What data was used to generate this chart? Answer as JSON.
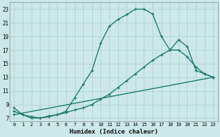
{
  "xlabel": "Humidex (Indice chaleur)",
  "bg_color": "#cce8e8",
  "grid_color": "#b5d5d5",
  "line_color": "#1a7a6e",
  "xlim": [
    -0.5,
    23.5
  ],
  "ylim": [
    6.5,
    24
  ],
  "xticks": [
    0,
    1,
    2,
    3,
    4,
    5,
    6,
    7,
    8,
    9,
    10,
    11,
    12,
    13,
    14,
    15,
    16,
    17,
    18,
    19,
    20,
    21,
    22,
    23
  ],
  "yticks": [
    7,
    9,
    11,
    13,
    15,
    17,
    19,
    21,
    23
  ],
  "curve1_x": [
    0,
    1,
    2,
    3,
    4,
    5,
    6,
    7,
    8,
    9,
    10,
    11,
    12,
    13,
    14,
    15,
    16,
    17,
    18,
    19,
    20,
    21,
    22,
    23
  ],
  "curve1_y": [
    8.5,
    7.5,
    7.0,
    7.0,
    7.3,
    7.5,
    8.0,
    10.0,
    12.0,
    14.0,
    18.0,
    20.5,
    21.5,
    22.2,
    23.0,
    23.0,
    22.3,
    19.0,
    17.0,
    18.5,
    17.5,
    14.0,
    13.5,
    13.0
  ],
  "curve2_x": [
    0,
    1,
    2,
    3,
    4,
    5,
    6,
    7,
    8,
    9,
    10,
    11,
    12,
    13,
    14,
    15,
    16,
    17,
    18,
    19,
    20,
    21,
    22,
    23
  ],
  "curve2_y": [
    8.0,
    7.5,
    7.2,
    7.0,
    7.2,
    7.5,
    7.8,
    8.2,
    8.5,
    9.0,
    9.8,
    10.5,
    11.5,
    12.5,
    13.5,
    14.5,
    15.5,
    16.3,
    17.0,
    17.0,
    16.0,
    14.5,
    13.5,
    13.0
  ],
  "curve3_x": [
    0,
    23
  ],
  "curve3_y": [
    7.5,
    13.0
  ]
}
